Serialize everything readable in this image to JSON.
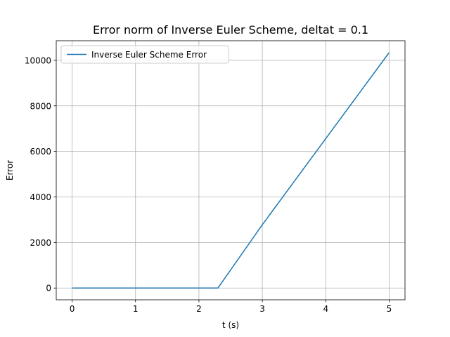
{
  "chart_data": {
    "type": "line",
    "title": "Error norm of Inverse Euler Scheme, deltat = 0.1",
    "xlabel": "t (s)",
    "ylabel": "Error",
    "xlim": [
      -0.25,
      5.25
    ],
    "ylim": [
      -517,
      10860
    ],
    "xticks": [
      0,
      1,
      2,
      3,
      4,
      5
    ],
    "yticks": [
      0,
      2000,
      4000,
      6000,
      8000,
      10000
    ],
    "grid": true,
    "legend_position": "top-left",
    "series": [
      {
        "name": "Inverse Euler Scheme Error",
        "color": "#1f77b4",
        "x": [
          0,
          0.5,
          1.0,
          1.5,
          2.0,
          2.3,
          3.0,
          4.0,
          5.0
        ],
        "y": [
          0,
          0,
          0,
          0,
          0,
          0,
          2780,
          6560,
          10340
        ]
      }
    ]
  }
}
